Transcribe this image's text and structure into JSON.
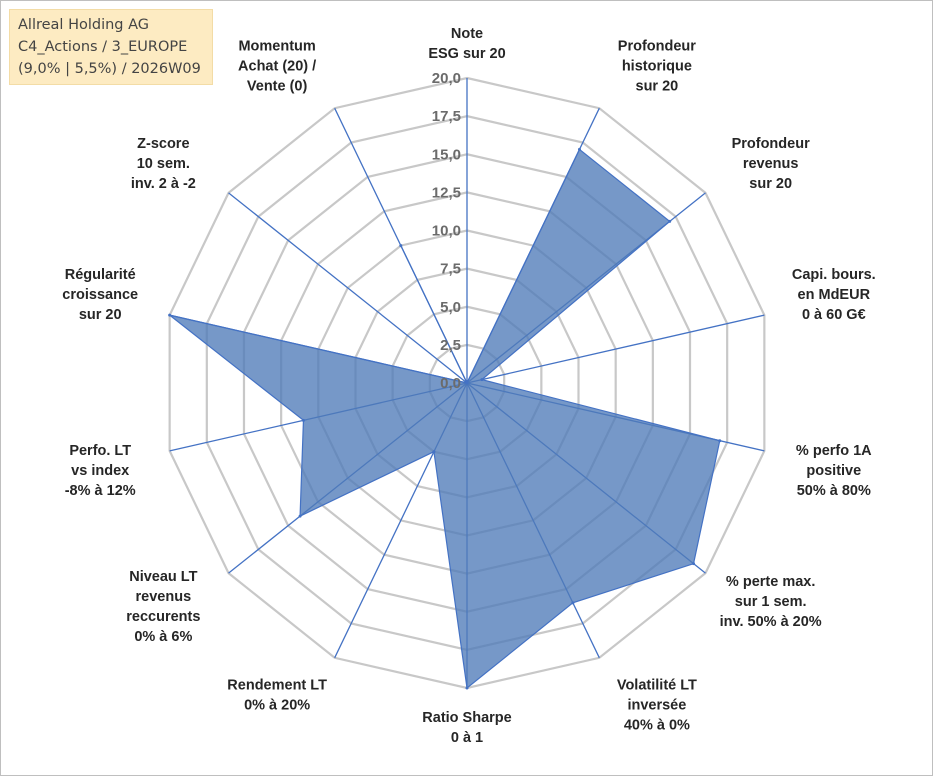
{
  "info_box": {
    "line1": "Allreal Holding AG",
    "line2": "C4_Actions / 3_EUROPE",
    "line3": "(9,0% | 5,5%) / 2026W09"
  },
  "chart_data": {
    "type": "radar",
    "r_range": [
      0,
      20
    ],
    "tick_values": [
      0,
      2.5,
      5,
      7.5,
      10,
      12.5,
      15,
      17.5,
      20
    ],
    "tick_labels": [
      "0,0",
      "2,5",
      "5,0",
      "7,5",
      "10,0",
      "12,5",
      "15,0",
      "17,5",
      "20,0"
    ],
    "grid": true,
    "legend": "none",
    "fill_color": "#4f7bb8",
    "line_color": "#4472c4",
    "grid_color": "#c8c8c8",
    "axes": [
      {
        "label": [
          "Note",
          "ESG sur 20"
        ],
        "value": 0
      },
      {
        "label": [
          "Profondeur",
          "historique",
          "sur 20"
        ],
        "value": 17
      },
      {
        "label": [
          "Profondeur",
          "revenus",
          "sur 20"
        ],
        "value": 17
      },
      {
        "label": [
          "Capi. bours.",
          "en MdEUR",
          "0 à 60 G€"
        ],
        "value": 1
      },
      {
        "label": [
          "% perfo 1A",
          "positive",
          "50% à 80%"
        ],
        "value": 17
      },
      {
        "label": [
          "% perte max.",
          "sur 1 sem.",
          "inv. 50% à 20%"
        ],
        "value": 19
      },
      {
        "label": [
          "Volatilité LT",
          "inversée",
          "40% à 0%"
        ],
        "value": 16
      },
      {
        "label": [
          "Ratio Sharpe",
          "0 à 1"
        ],
        "value": 20
      },
      {
        "label": [
          "Rendement LT",
          "0% à 20%"
        ],
        "value": 5
      },
      {
        "label": [
          "Niveau LT",
          "revenus",
          "reccurents",
          "0% à 6%"
        ],
        "value": 14
      },
      {
        "label": [
          "Perfo. LT",
          "vs index",
          "-8% à 12%"
        ],
        "value": 11
      },
      {
        "label": [
          "Régularité",
          "croissance",
          "sur 20"
        ],
        "value": 20
      },
      {
        "label": [
          "Z-score",
          "10 sem.",
          "inv. 2 à -2"
        ],
        "value": 0
      },
      {
        "label": [
          "Momentum",
          "Achat (20) /",
          "Vente (0)"
        ],
        "value": 10
      }
    ]
  }
}
